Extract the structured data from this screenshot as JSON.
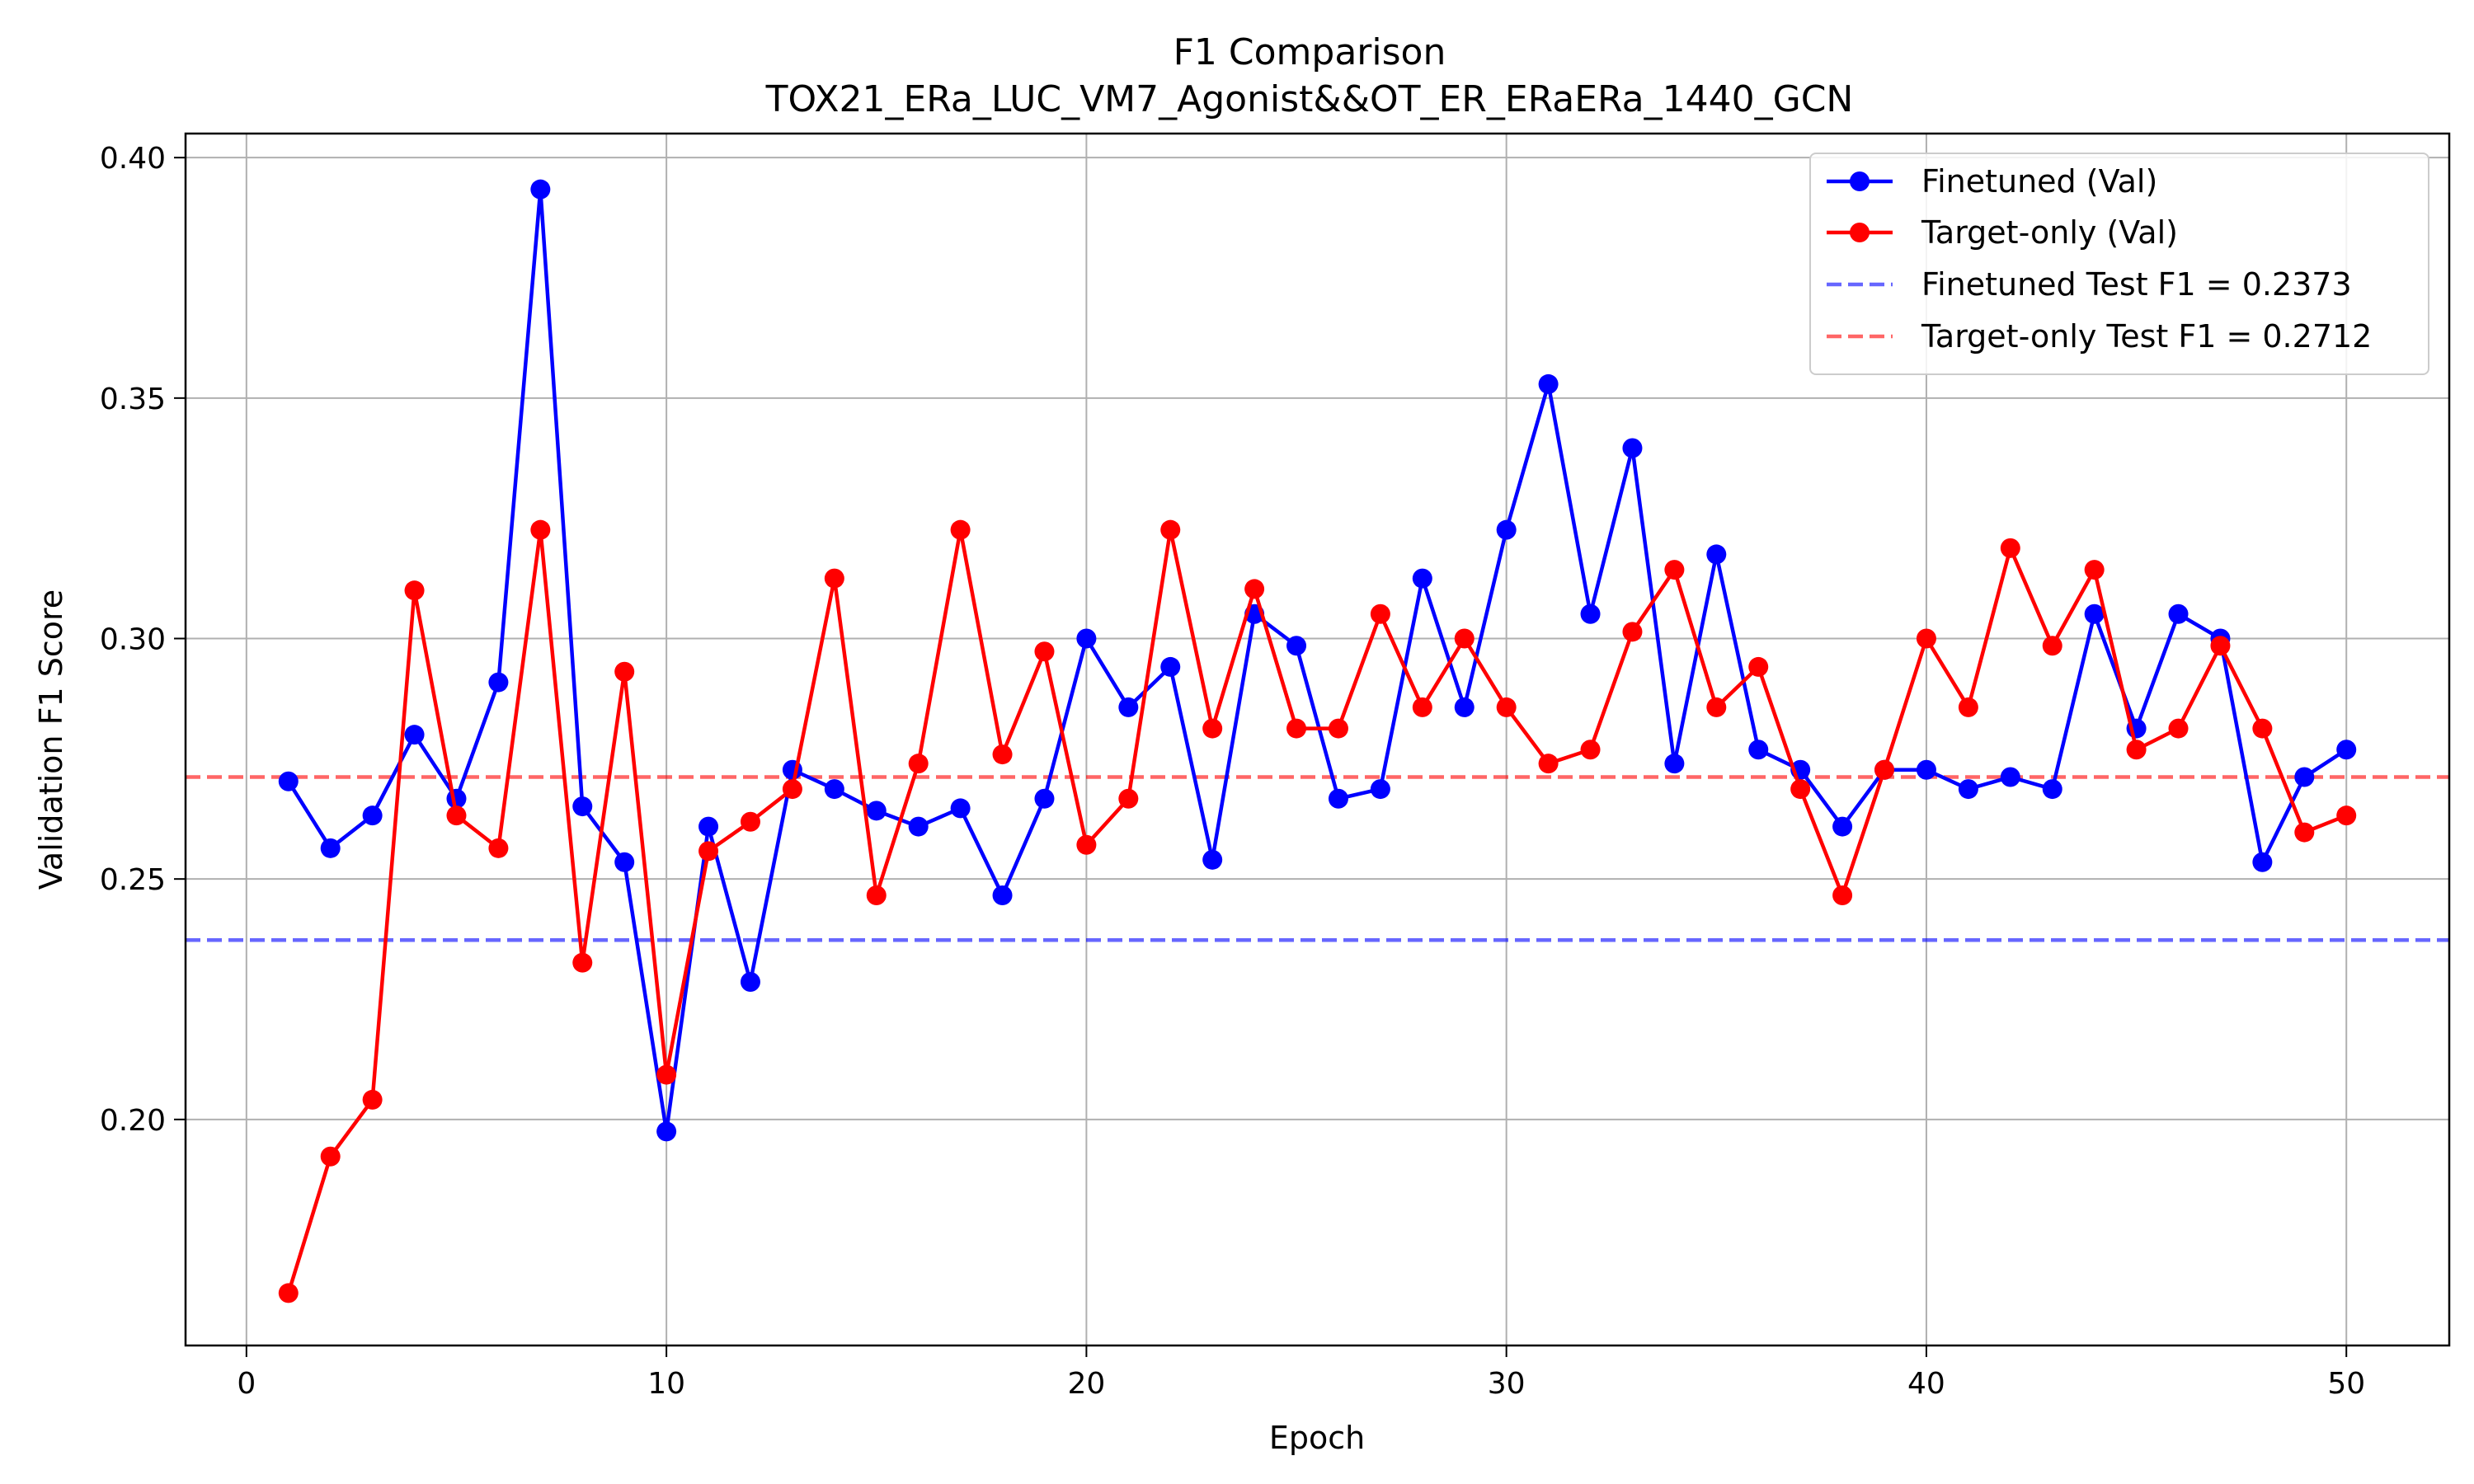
{
  "chart_data": {
    "type": "line",
    "title": "F1 Comparison",
    "subtitle": "TOX21_ERa_LUC_VM7_Agonist&&OT_ER_ERaERa_1440_GCN",
    "xlabel": "Epoch",
    "ylabel": "Validation F1 Score",
    "xlim": [
      -1.45,
      52.45
    ],
    "ylim": [
      0.153,
      0.405
    ],
    "xticks": [
      0,
      10,
      20,
      30,
      40,
      50
    ],
    "xtick_labels": [
      "0",
      "10",
      "20",
      "30",
      "40",
      "50"
    ],
    "yticks": [
      0.2,
      0.25,
      0.3,
      0.35,
      0.4
    ],
    "ytick_labels": [
      "0.20",
      "0.25",
      "0.30",
      "0.35",
      "0.40"
    ],
    "grid": true,
    "legend_position": "top-right",
    "x": [
      1,
      2,
      3,
      4,
      5,
      6,
      7,
      8,
      9,
      10,
      11,
      12,
      13,
      14,
      15,
      16,
      17,
      18,
      19,
      20,
      21,
      22,
      23,
      24,
      25,
      26,
      27,
      28,
      29,
      30,
      31,
      32,
      33,
      34,
      35,
      36,
      37,
      38,
      39,
      40,
      41,
      42,
      43,
      44,
      45,
      46,
      47,
      48,
      49,
      50
    ],
    "series": [
      {
        "name": "Finetuned (Val)",
        "color": "#0000ff",
        "values": [
          0.2703,
          0.2564,
          0.2632,
          0.28,
          0.2667,
          0.2909,
          0.3934,
          0.2651,
          0.2535,
          0.1975,
          0.2609,
          0.2286,
          0.2727,
          0.2687,
          0.2642,
          0.2609,
          0.2647,
          0.2466,
          0.2667,
          0.3,
          0.2857,
          0.2941,
          0.254,
          0.3051,
          0.2985,
          0.2667,
          0.2687,
          0.3125,
          0.2857,
          0.3226,
          0.3529,
          0.3051,
          0.3396,
          0.274,
          0.3175,
          0.2769,
          0.2727,
          0.2609,
          0.2727,
          0.2727,
          0.2687,
          0.2712,
          0.2687,
          0.3051,
          0.2813,
          0.3051,
          0.3,
          0.2535,
          0.2712,
          0.2769
        ]
      },
      {
        "name": "Target-only (Val)",
        "color": "#ff0000",
        "values": [
          0.1639,
          0.1923,
          0.2041,
          0.31,
          0.2632,
          0.2564,
          0.3226,
          0.2326,
          0.2931,
          0.2093,
          0.2558,
          0.2619,
          0.2687,
          0.3125,
          0.2466,
          0.274,
          0.3226,
          0.2759,
          0.2973,
          0.2571,
          0.2667,
          0.3226,
          0.2813,
          0.3103,
          0.2813,
          0.2813,
          0.3051,
          0.2857,
          0.3,
          0.2857,
          0.274,
          0.2769,
          0.3014,
          0.3143,
          0.2857,
          0.2941,
          0.2687,
          0.2466,
          0.2727,
          0.3,
          0.2857,
          0.3188,
          0.2985,
          0.3143,
          0.2769,
          0.2813,
          0.2985,
          0.2813,
          0.2597,
          0.2632
        ]
      }
    ],
    "reference_lines": [
      {
        "name": "Finetuned Test F1 = 0.2373",
        "value": 0.2373,
        "color": "#0000ff"
      },
      {
        "name": "Target-only Test F1 = 0.2712",
        "value": 0.2712,
        "color": "#ff0000"
      }
    ]
  }
}
